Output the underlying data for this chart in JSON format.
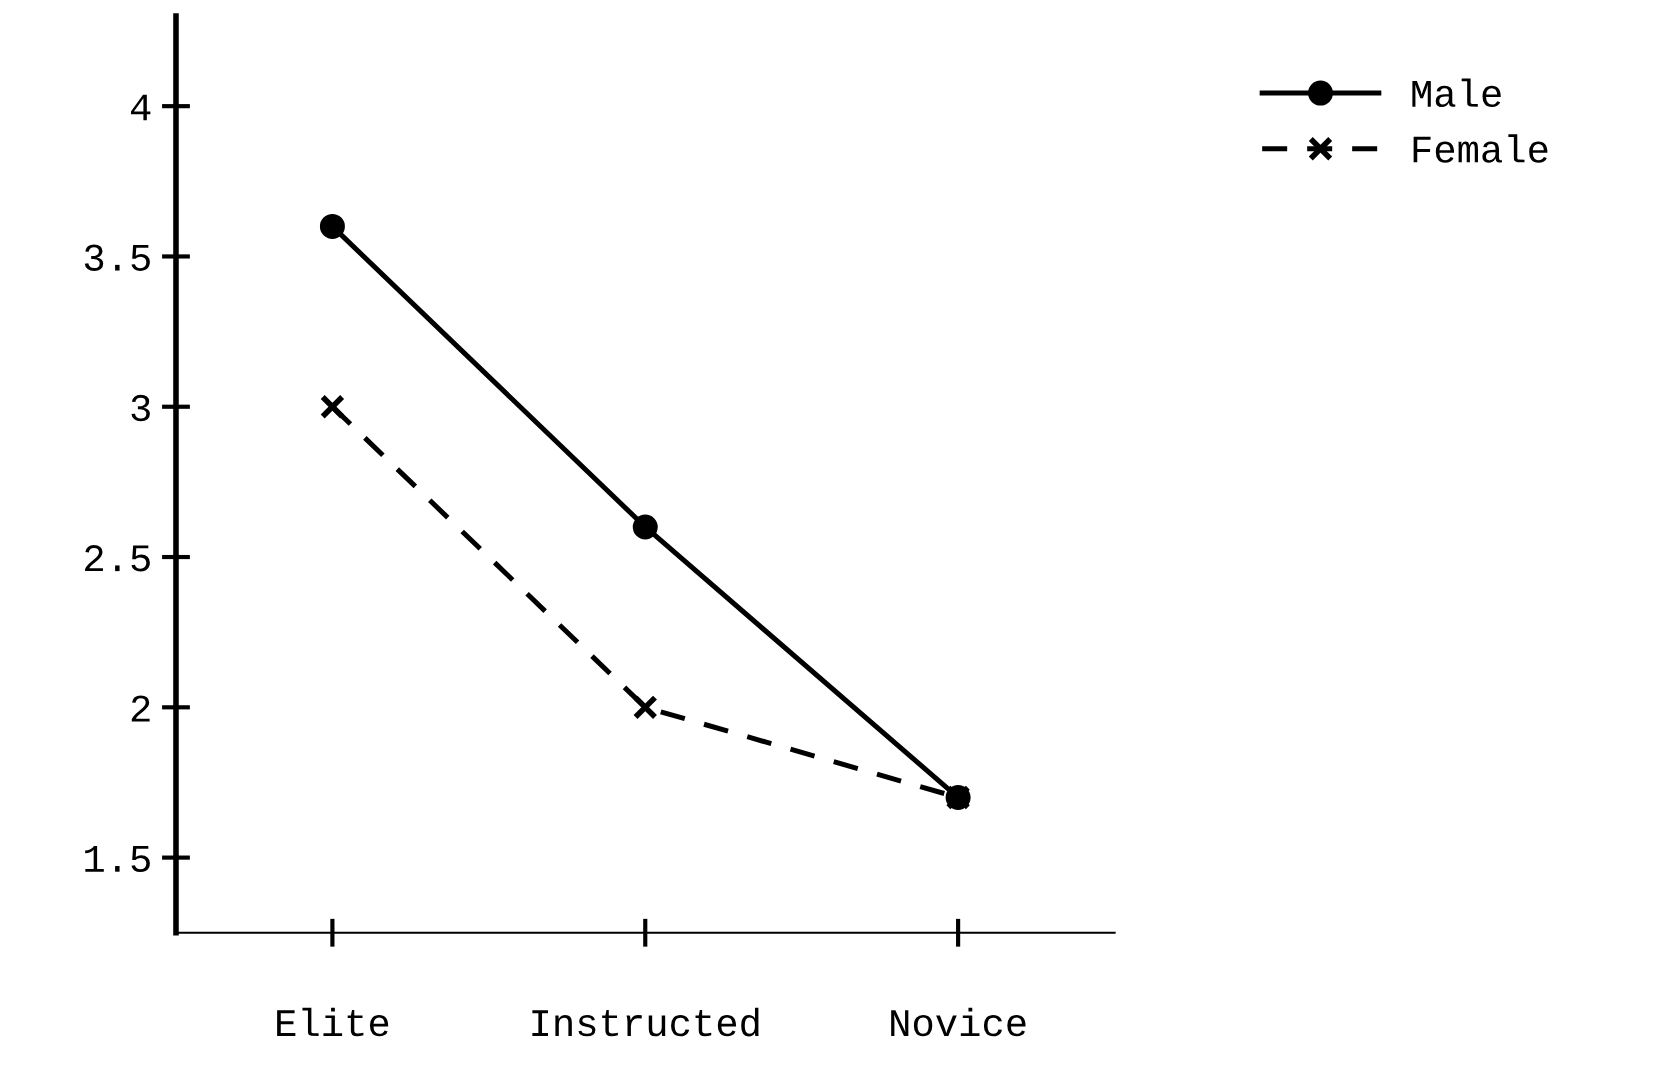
{
  "chart_data": {
    "type": "line",
    "categories": [
      "Elite",
      "Instructed",
      "Novice"
    ],
    "series": [
      {
        "name": "Male",
        "color": "#000000",
        "values": [
          3.6,
          2.6,
          1.7
        ],
        "marker": "circle",
        "line_style": "solid"
      },
      {
        "name": "Female",
        "color": "#000000",
        "values": [
          3.0,
          2.0,
          1.7
        ],
        "marker": "cross",
        "line_style": "dashed"
      }
    ],
    "ylim": [
      1.25,
      4.3
    ],
    "yticks": [
      1.5,
      2,
      2.5,
      3,
      3.5,
      4
    ],
    "grid": false,
    "legend": "top right"
  }
}
